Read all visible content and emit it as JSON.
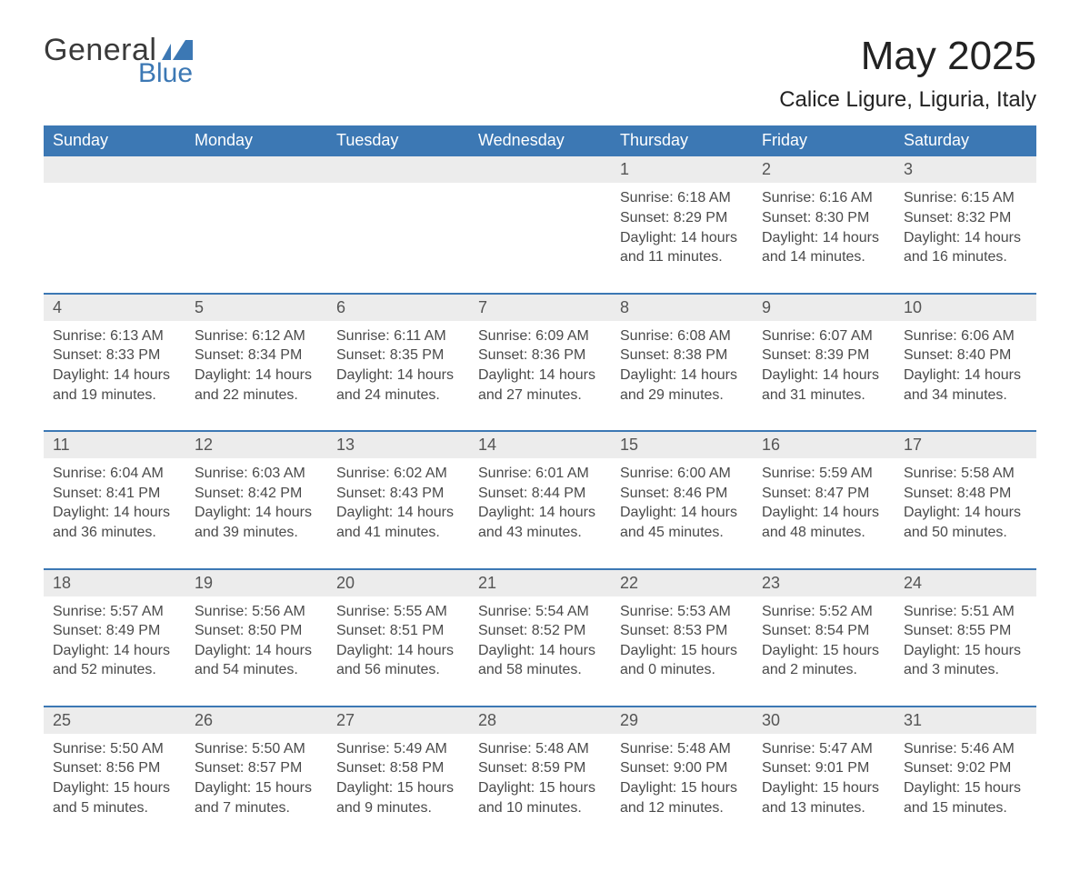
{
  "brand": {
    "word1": "General",
    "word2": "Blue",
    "word1_color": "#3a3a3a",
    "word2_color": "#3c78b4",
    "flag_color": "#3c78b4"
  },
  "title": "May 2025",
  "location": "Calice Ligure, Liguria, Italy",
  "colors": {
    "header_bg": "#3c78b4",
    "header_text": "#ffffff",
    "daynum_bg": "#ececec",
    "rule": "#3c78b4",
    "page_bg": "#ffffff",
    "body_text": "#4a4a4a"
  },
  "typography": {
    "title_fontsize_pt": 33,
    "location_fontsize_pt": 18,
    "dow_fontsize_pt": 14,
    "daynum_fontsize_pt": 14,
    "cell_fontsize_pt": 12,
    "font_family": "Segoe UI / Arial"
  },
  "calendar": {
    "type": "month-grid",
    "columns": 7,
    "rows": 5,
    "days_of_week": [
      "Sunday",
      "Monday",
      "Tuesday",
      "Wednesday",
      "Thursday",
      "Friday",
      "Saturday"
    ],
    "leading_blanks": 4,
    "days": [
      {
        "n": 1,
        "sunrise": "6:18 AM",
        "sunset": "8:29 PM",
        "daylight": "14 hours and 11 minutes."
      },
      {
        "n": 2,
        "sunrise": "6:16 AM",
        "sunset": "8:30 PM",
        "daylight": "14 hours and 14 minutes."
      },
      {
        "n": 3,
        "sunrise": "6:15 AM",
        "sunset": "8:32 PM",
        "daylight": "14 hours and 16 minutes."
      },
      {
        "n": 4,
        "sunrise": "6:13 AM",
        "sunset": "8:33 PM",
        "daylight": "14 hours and 19 minutes."
      },
      {
        "n": 5,
        "sunrise": "6:12 AM",
        "sunset": "8:34 PM",
        "daylight": "14 hours and 22 minutes."
      },
      {
        "n": 6,
        "sunrise": "6:11 AM",
        "sunset": "8:35 PM",
        "daylight": "14 hours and 24 minutes."
      },
      {
        "n": 7,
        "sunrise": "6:09 AM",
        "sunset": "8:36 PM",
        "daylight": "14 hours and 27 minutes."
      },
      {
        "n": 8,
        "sunrise": "6:08 AM",
        "sunset": "8:38 PM",
        "daylight": "14 hours and 29 minutes."
      },
      {
        "n": 9,
        "sunrise": "6:07 AM",
        "sunset": "8:39 PM",
        "daylight": "14 hours and 31 minutes."
      },
      {
        "n": 10,
        "sunrise": "6:06 AM",
        "sunset": "8:40 PM",
        "daylight": "14 hours and 34 minutes."
      },
      {
        "n": 11,
        "sunrise": "6:04 AM",
        "sunset": "8:41 PM",
        "daylight": "14 hours and 36 minutes."
      },
      {
        "n": 12,
        "sunrise": "6:03 AM",
        "sunset": "8:42 PM",
        "daylight": "14 hours and 39 minutes."
      },
      {
        "n": 13,
        "sunrise": "6:02 AM",
        "sunset": "8:43 PM",
        "daylight": "14 hours and 41 minutes."
      },
      {
        "n": 14,
        "sunrise": "6:01 AM",
        "sunset": "8:44 PM",
        "daylight": "14 hours and 43 minutes."
      },
      {
        "n": 15,
        "sunrise": "6:00 AM",
        "sunset": "8:46 PM",
        "daylight": "14 hours and 45 minutes."
      },
      {
        "n": 16,
        "sunrise": "5:59 AM",
        "sunset": "8:47 PM",
        "daylight": "14 hours and 48 minutes."
      },
      {
        "n": 17,
        "sunrise": "5:58 AM",
        "sunset": "8:48 PM",
        "daylight": "14 hours and 50 minutes."
      },
      {
        "n": 18,
        "sunrise": "5:57 AM",
        "sunset": "8:49 PM",
        "daylight": "14 hours and 52 minutes."
      },
      {
        "n": 19,
        "sunrise": "5:56 AM",
        "sunset": "8:50 PM",
        "daylight": "14 hours and 54 minutes."
      },
      {
        "n": 20,
        "sunrise": "5:55 AM",
        "sunset": "8:51 PM",
        "daylight": "14 hours and 56 minutes."
      },
      {
        "n": 21,
        "sunrise": "5:54 AM",
        "sunset": "8:52 PM",
        "daylight": "14 hours and 58 minutes."
      },
      {
        "n": 22,
        "sunrise": "5:53 AM",
        "sunset": "8:53 PM",
        "daylight": "15 hours and 0 minutes."
      },
      {
        "n": 23,
        "sunrise": "5:52 AM",
        "sunset": "8:54 PM",
        "daylight": "15 hours and 2 minutes."
      },
      {
        "n": 24,
        "sunrise": "5:51 AM",
        "sunset": "8:55 PM",
        "daylight": "15 hours and 3 minutes."
      },
      {
        "n": 25,
        "sunrise": "5:50 AM",
        "sunset": "8:56 PM",
        "daylight": "15 hours and 5 minutes."
      },
      {
        "n": 26,
        "sunrise": "5:50 AM",
        "sunset": "8:57 PM",
        "daylight": "15 hours and 7 minutes."
      },
      {
        "n": 27,
        "sunrise": "5:49 AM",
        "sunset": "8:58 PM",
        "daylight": "15 hours and 9 minutes."
      },
      {
        "n": 28,
        "sunrise": "5:48 AM",
        "sunset": "8:59 PM",
        "daylight": "15 hours and 10 minutes."
      },
      {
        "n": 29,
        "sunrise": "5:48 AM",
        "sunset": "9:00 PM",
        "daylight": "15 hours and 12 minutes."
      },
      {
        "n": 30,
        "sunrise": "5:47 AM",
        "sunset": "9:01 PM",
        "daylight": "15 hours and 13 minutes."
      },
      {
        "n": 31,
        "sunrise": "5:46 AM",
        "sunset": "9:02 PM",
        "daylight": "15 hours and 15 minutes."
      }
    ],
    "labels": {
      "sunrise_prefix": "Sunrise: ",
      "sunset_prefix": "Sunset: ",
      "daylight_prefix": "Daylight: "
    }
  }
}
